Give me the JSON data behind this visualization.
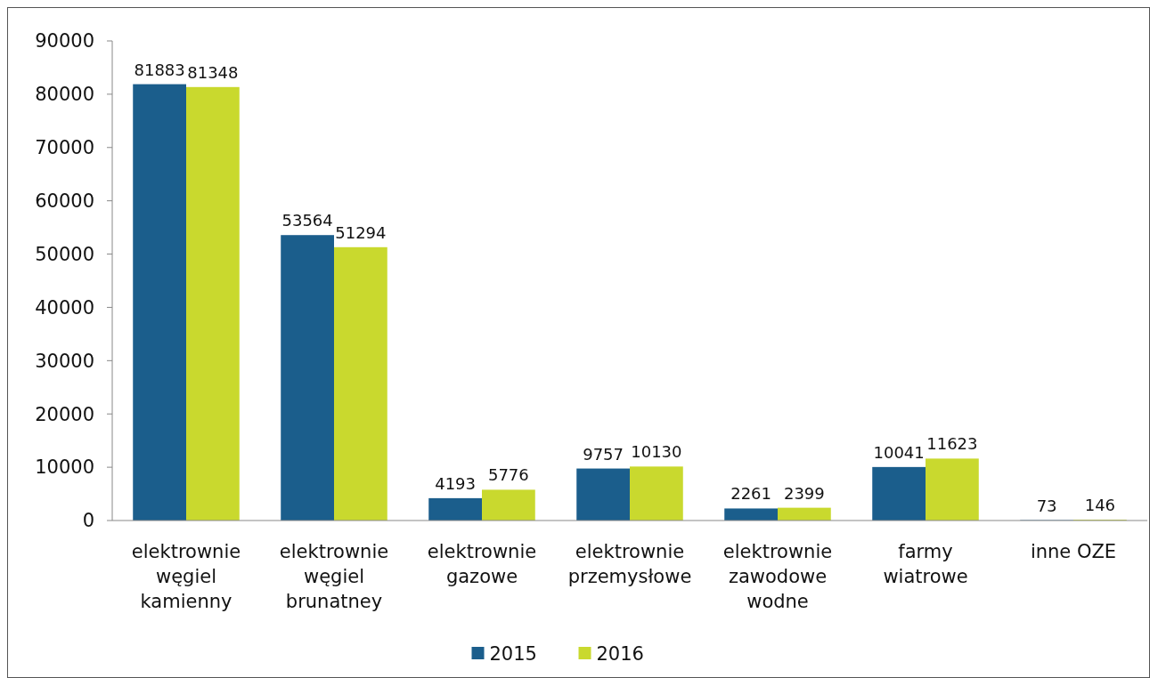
{
  "chart_data": {
    "type": "bar",
    "categories": [
      "elektrownie\nwęgiel\nkamienny",
      "elektrownie\nwęgiel\nbrunatney",
      "elektrownie\ngazowe",
      "elektrownie\nprzemysłowe",
      "elektrownie\nzawodowe\nwodne",
      "farmy\nwiatrowe",
      "inne OZE"
    ],
    "series": [
      {
        "name": "2015",
        "color": "#1b5e8c",
        "values": [
          81883,
          53564,
          4193,
          9757,
          2261,
          10041,
          73
        ]
      },
      {
        "name": "2016",
        "color": "#c9d92e",
        "values": [
          81348,
          51294,
          5776,
          10130,
          2399,
          11623,
          146
        ]
      }
    ],
    "ylim": [
      0,
      90000
    ],
    "yticks": [
      0,
      10000,
      20000,
      30000,
      40000,
      50000,
      60000,
      70000,
      80000,
      90000
    ],
    "grid": false,
    "data_labels": true,
    "legend": "bottom"
  }
}
